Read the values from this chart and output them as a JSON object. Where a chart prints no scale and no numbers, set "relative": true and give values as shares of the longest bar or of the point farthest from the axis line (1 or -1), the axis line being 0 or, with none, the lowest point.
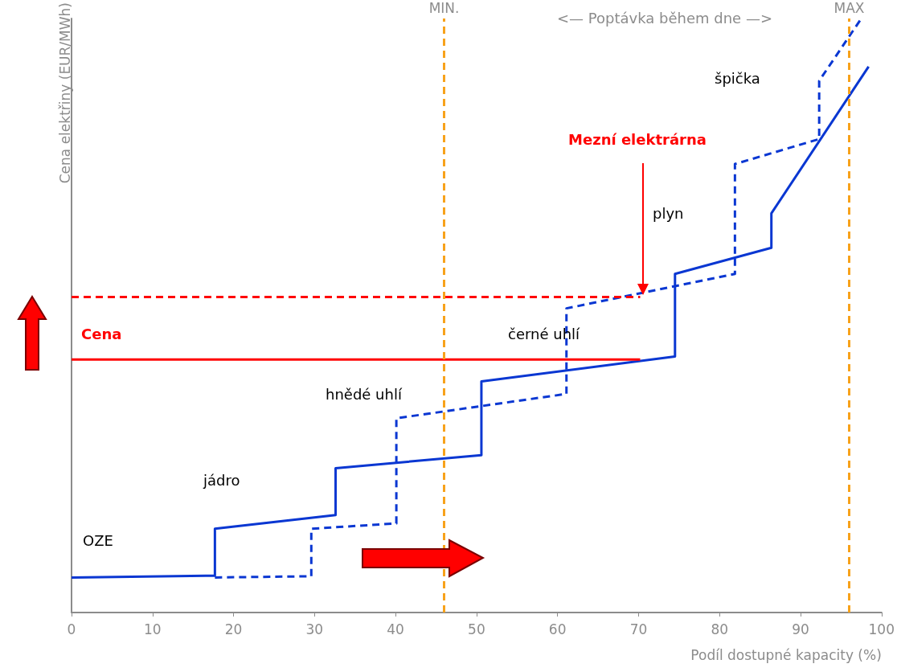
{
  "chart_data": {
    "type": "line",
    "relative": true,
    "ylabel": "Cena elektřiny (EUR/MWh)",
    "xlabel": "Podíl dostupné kapacity (%)",
    "xlim": [
      0,
      100
    ],
    "xticks": [
      0,
      10,
      20,
      30,
      40,
      50,
      60,
      70,
      80,
      90,
      100
    ],
    "grid": false,
    "marker": "none",
    "series": [
      {
        "color": "#0a37d2",
        "line_style": "solid",
        "x": [
          0,
          17.7,
          17.7,
          32.6,
          32.6,
          50.6,
          50.6,
          74.5,
          74.5,
          86.4,
          86.4,
          98.4
        ],
        "values": [
          0.059,
          0.062,
          0.141,
          0.164,
          0.243,
          0.265,
          0.389,
          0.431,
          0.57,
          0.614,
          0.672,
          0.919
        ]
      },
      {
        "color": "#0a37d2",
        "line_style": "dashed",
        "x": [
          17.7,
          29.6,
          29.6,
          40.1,
          40.1,
          61.1,
          61.1,
          81.9,
          81.9,
          92.3,
          92.3,
          97.5
        ],
        "values": [
          0.059,
          0.061,
          0.141,
          0.15,
          0.327,
          0.368,
          0.512,
          0.57,
          0.755,
          0.797,
          0.895,
          1.0
        ]
      },
      {
        "name": "Cena",
        "color": "#ff0000",
        "line_style": "solid",
        "x": [
          0,
          70.2
        ],
        "values": [
          0.426,
          0.426
        ]
      },
      {
        "color": "#ff0000",
        "line_style": "dashed",
        "x": [
          0,
          70.2
        ],
        "values": [
          0.531,
          0.531
        ]
      }
    ],
    "ref_lines": [
      {
        "axis": "x",
        "value": 46,
        "label": "MIN.",
        "color": "#f7a21b",
        "line_style": "dashed"
      },
      {
        "axis": "x",
        "value": 96,
        "label": "MAX",
        "color": "#f7a21b",
        "line_style": "dashed"
      }
    ],
    "annotations": [
      "<—   Poptávka během dne   —>",
      "OZE",
      "jádro",
      "hnědé uhlí",
      "černé uhlí",
      "plyn",
      "špička",
      "Mezní elektrárna"
    ]
  }
}
